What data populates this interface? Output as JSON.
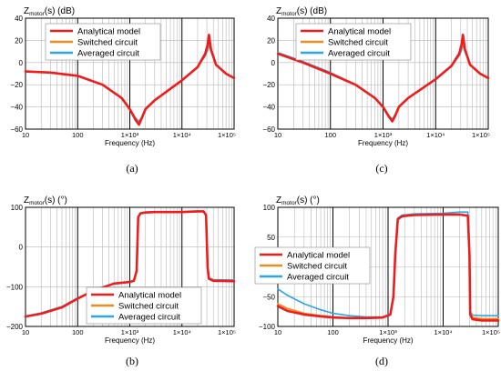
{
  "figure": {
    "colors": {
      "analytical": "#ee1c1c",
      "switched": "#f28a1e",
      "averaged": "#2aa7e6",
      "grid_major": "#000000",
      "grid_minor": "#b8b8b8"
    }
  },
  "chart_data": [
    {
      "id": "a",
      "panel_label": "(a)",
      "type": "line",
      "title_main": "Z",
      "title_sub": "motor",
      "title_tail": "(s) (dB)",
      "xlabel": "Frequency (Hz)",
      "xscale": "log",
      "xlim": [
        10,
        100000
      ],
      "ylim": [
        -60,
        40
      ],
      "yticks": [
        40,
        20,
        0,
        -20,
        -40,
        -60
      ],
      "xtick_labels": [
        "10",
        "100",
        "1×10³",
        "1×10⁴",
        "1×10⁵"
      ],
      "grid": true,
      "legend": {
        "position": "top-left",
        "entries": [
          "Analytical model",
          "Switched circuit",
          "Averaged circuit"
        ]
      },
      "series": [
        {
          "name": "Analytical model",
          "x": [
            10,
            30,
            100,
            300,
            700,
            1000,
            1300,
            1500,
            1700,
            2000,
            3000,
            10000,
            20000,
            28000,
            31000,
            33000,
            36000,
            45000,
            70000,
            100000
          ],
          "y": [
            -8,
            -9,
            -12,
            -20,
            -32,
            -42,
            -52,
            -56,
            -50,
            -42,
            -34,
            -16,
            -4,
            8,
            16,
            25,
            12,
            -2,
            -10,
            -14
          ]
        },
        {
          "name": "Switched circuit",
          "x": [
            10,
            30,
            100,
            300,
            700,
            1000,
            1300,
            1500,
            1700,
            2000,
            3000,
            10000,
            20000,
            28000,
            31000,
            33000,
            36000,
            45000,
            70000,
            100000
          ],
          "y": [
            -8,
            -9,
            -12,
            -20,
            -32,
            -42,
            -51,
            -55,
            -50,
            -42,
            -34,
            -16,
            -4,
            7,
            13,
            20,
            11,
            -2,
            -10,
            -14
          ]
        },
        {
          "name": "Averaged circuit",
          "x": [
            10,
            30,
            100,
            300,
            700,
            1000,
            1300,
            1500,
            1700,
            2000,
            3000,
            10000,
            20000,
            28000,
            31000,
            33000,
            36000,
            45000,
            70000,
            100000
          ],
          "y": [
            -8,
            -9,
            -12,
            -20,
            -32,
            -42,
            -50,
            -53,
            -49,
            -42,
            -34,
            -16,
            -4,
            6,
            11,
            16,
            10,
            -2,
            -10,
            -14
          ]
        }
      ]
    },
    {
      "id": "c",
      "panel_label": "(c)",
      "type": "line",
      "title_main": "Z",
      "title_sub": "motor",
      "title_tail": "(s) (dB)",
      "xlabel": "Frequency (Hz)",
      "xscale": "log",
      "xlim": [
        10,
        100000
      ],
      "ylim": [
        -60,
        40
      ],
      "yticks": [
        40,
        20,
        0,
        -20,
        -40,
        -60
      ],
      "xtick_labels": [
        "10",
        "100",
        "1×10³",
        "1×10⁴",
        "1×10⁵"
      ],
      "grid": true,
      "legend": {
        "position": "top-left",
        "entries": [
          "Analytical model",
          "Switched circuit",
          "Averaged circuit"
        ]
      },
      "series": [
        {
          "name": "Analytical model",
          "x": [
            10,
            30,
            100,
            300,
            700,
            1000,
            1300,
            1500,
            1700,
            2000,
            3000,
            10000,
            20000,
            28000,
            31000,
            33000,
            36000,
            45000,
            70000,
            100000
          ],
          "y": [
            8,
            0,
            -10,
            -20,
            -32,
            -40,
            -49,
            -53,
            -48,
            -40,
            -32,
            -15,
            -3,
            8,
            16,
            25,
            12,
            -2,
            -10,
            -14
          ]
        },
        {
          "name": "Switched circuit",
          "x": [
            10,
            30,
            100,
            300,
            700,
            1000,
            1300,
            1500,
            1700,
            2000,
            3000,
            10000,
            20000,
            28000,
            31000,
            33000,
            36000,
            45000,
            70000,
            100000
          ],
          "y": [
            8,
            0,
            -10,
            -20,
            -32,
            -40,
            -49,
            -52,
            -48,
            -40,
            -32,
            -15,
            -3,
            7,
            13,
            20,
            11,
            -2,
            -10,
            -14
          ]
        },
        {
          "name": "Averaged circuit",
          "x": [
            10,
            30,
            100,
            300,
            700,
            1000,
            1300,
            1500,
            1700,
            2000,
            3000,
            10000,
            20000,
            28000,
            31000,
            33000,
            36000,
            45000,
            70000,
            100000
          ],
          "y": [
            9,
            1,
            -9,
            -20,
            -32,
            -40,
            -48,
            -51,
            -47,
            -40,
            -32,
            -15,
            -3,
            6,
            11,
            16,
            10,
            -2,
            -10,
            -14
          ]
        }
      ]
    },
    {
      "id": "b",
      "panel_label": "(b)",
      "type": "line",
      "title_main": "Z",
      "title_sub": "motor",
      "title_tail": "(s) (°)",
      "xlabel": "Frequency (Hz)",
      "xscale": "log",
      "xlim": [
        10,
        100000
      ],
      "ylim": [
        -200,
        100
      ],
      "yticks": [
        100,
        0,
        -100,
        -200
      ],
      "xtick_labels": [
        "10",
        "100",
        "1×10³",
        "1×10⁴",
        "1×10⁵"
      ],
      "grid": true,
      "legend": {
        "position": "bottom-right",
        "entries": [
          "Analytical model",
          "Switched circuit",
          "Averaged circuit"
        ]
      },
      "series": [
        {
          "name": "Analytical model",
          "x": [
            10,
            20,
            50,
            100,
            200,
            500,
            1000,
            1200,
            1350,
            1450,
            1600,
            2000,
            3000,
            10000,
            20000,
            26000,
            29000,
            31000,
            33000,
            40000,
            100000
          ],
          "y": [
            -175,
            -168,
            -152,
            -130,
            -110,
            -92,
            -88,
            -85,
            -60,
            75,
            85,
            87,
            88,
            88,
            90,
            90,
            80,
            -50,
            -80,
            -85,
            -86
          ]
        },
        {
          "name": "Switched circuit",
          "x": [
            10,
            20,
            50,
            100,
            200,
            500,
            1000,
            1200,
            1350,
            1450,
            1600,
            2000,
            3000,
            10000,
            20000,
            26000,
            29000,
            31000,
            33000,
            40000,
            100000
          ],
          "y": [
            -175,
            -168,
            -152,
            -130,
            -110,
            -92,
            -88,
            -85,
            -60,
            75,
            85,
            87,
            88,
            88,
            89,
            89,
            80,
            -50,
            -80,
            -84,
            -85
          ]
        },
        {
          "name": "Averaged circuit",
          "x": [
            10,
            20,
            50,
            100,
            200,
            500,
            1000,
            1200,
            1350,
            1450,
            1600,
            2000,
            3000,
            10000,
            20000,
            26000,
            29000,
            31000,
            33000,
            40000,
            100000
          ],
          "y": [
            -174,
            -166,
            -150,
            -128,
            -110,
            -92,
            -88,
            -84,
            -58,
            76,
            86,
            88,
            89,
            89,
            90,
            90,
            82,
            -50,
            -78,
            -82,
            -83
          ]
        }
      ]
    },
    {
      "id": "d",
      "panel_label": "(d)",
      "type": "line",
      "title_main": "Z",
      "title_sub": "motor",
      "title_tail": "(s) (°)",
      "xlabel": "Frequency (Hz)",
      "xscale": "log",
      "xlim": [
        10,
        100000
      ],
      "ylim": [
        -100,
        100
      ],
      "yticks": [
        100,
        50,
        0,
        -50,
        -100
      ],
      "xtick_labels": [
        "10",
        "100",
        "1×10³",
        "1×10⁴",
        "1×10⁵"
      ],
      "grid": true,
      "legend": {
        "position": "center-left",
        "entries": [
          "Analytical model",
          "Switched circuit",
          "Averaged circuit"
        ]
      },
      "series": [
        {
          "name": "Analytical model",
          "x": [
            10,
            15,
            30,
            60,
            100,
            200,
            400,
            800,
            1100,
            1250,
            1350,
            1500,
            1800,
            3000,
            10000,
            20000,
            28000,
            30000,
            31000,
            34000,
            50000,
            100000
          ],
          "y": [
            -66,
            -74,
            -80,
            -83,
            -85,
            -86,
            -86,
            -85,
            -80,
            -50,
            20,
            80,
            85,
            87,
            88,
            88,
            86,
            20,
            -80,
            -88,
            -90,
            -90
          ]
        },
        {
          "name": "Switched circuit",
          "x": [
            10,
            15,
            30,
            60,
            100,
            200,
            400,
            800,
            1100,
            1250,
            1350,
            1500,
            1800,
            3000,
            10000,
            20000,
            28000,
            30000,
            31000,
            34000,
            50000,
            100000
          ],
          "y": [
            -62,
            -70,
            -78,
            -82,
            -84,
            -86,
            -86,
            -85,
            -80,
            -50,
            20,
            80,
            85,
            87,
            88,
            88,
            86,
            20,
            -78,
            -85,
            -87,
            -87
          ]
        },
        {
          "name": "Averaged circuit",
          "x": [
            10,
            15,
            30,
            60,
            100,
            200,
            400,
            800,
            1100,
            1250,
            1350,
            1500,
            1800,
            3000,
            10000,
            20000,
            28000,
            30000,
            31000,
            34000,
            50000,
            100000
          ],
          "y": [
            -37,
            -48,
            -62,
            -72,
            -78,
            -82,
            -84,
            -84,
            -80,
            -48,
            22,
            82,
            87,
            89,
            90,
            92,
            92,
            25,
            -75,
            -81,
            -82,
            -82
          ]
        }
      ]
    }
  ]
}
